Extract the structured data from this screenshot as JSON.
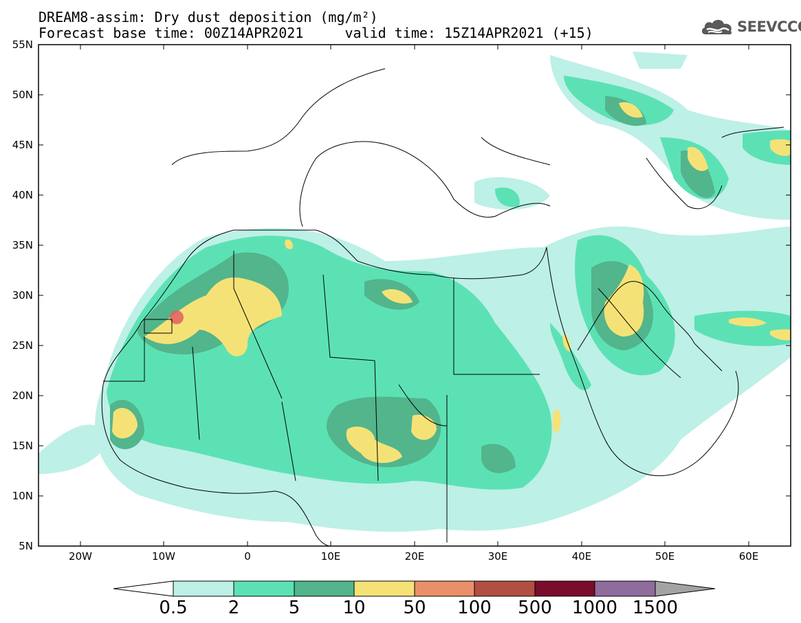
{
  "header": {
    "title_line1": "DREAM8-assim: Dry dust deposition (mg/m²)",
    "title_line2": "Forecast base time: 00Z14APR2021     valid time: 15Z14APR2021 (+15)",
    "logo_text": "SEEVCCC"
  },
  "map": {
    "lat_labels": [
      "55N",
      "50N",
      "45N",
      "40N",
      "35N",
      "30N",
      "25N",
      "20N",
      "15N",
      "10N",
      "5N"
    ],
    "lon_labels": [
      "20W",
      "10W",
      "0",
      "10E",
      "20E",
      "30E",
      "40E",
      "50E",
      "60E"
    ]
  },
  "colorbar": {
    "labels": [
      "0.5",
      "2",
      "5",
      "10",
      "50",
      "100",
      "500",
      "1000",
      "1500"
    ],
    "colors": [
      "#bdf0e6",
      "#5ce1b5",
      "#52b58c",
      "#f5e277",
      "#e9906a",
      "#b24f43",
      "#7a0c2c",
      "#8f6c9c"
    ],
    "under_color": "#ffffff",
    "over_color": "#a3a3a3"
  },
  "colors": {
    "level1": "#bdf0e6",
    "level2": "#5ce1b5",
    "level3": "#52b58c",
    "level4": "#f5e277",
    "marker": "#e05f5f"
  }
}
